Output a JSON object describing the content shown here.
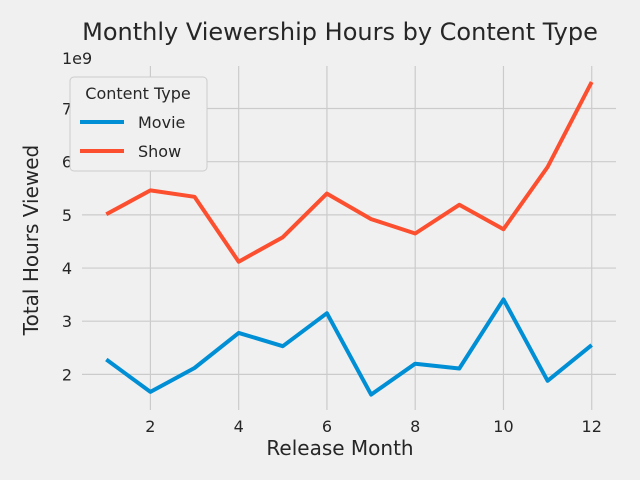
{
  "chart_data": {
    "type": "line",
    "title": "Monthly Viewership Hours by Content Type",
    "xlabel": "Release Month",
    "ylabel": "Total Hours Viewed",
    "y_offset_label": "1e9",
    "x": [
      1,
      2,
      3,
      4,
      5,
      6,
      7,
      8,
      9,
      10,
      11,
      12
    ],
    "xlim": [
      0.45,
      12.55
    ],
    "ylim": [
      1.33,
      7.8
    ],
    "y_unit_scale": 1000000000,
    "x_ticks": [
      2,
      4,
      6,
      8,
      10,
      12
    ],
    "y_ticks": [
      2,
      3,
      4,
      5,
      6,
      7
    ],
    "grid": true,
    "legend": {
      "title": "Content Type",
      "placement": "top-left"
    },
    "series": [
      {
        "name": "Movie",
        "color": "#008fd5",
        "values": [
          2.28,
          1.67,
          2.12,
          2.78,
          2.53,
          3.15,
          1.62,
          2.2,
          2.11,
          3.41,
          1.88,
          2.55
        ]
      },
      {
        "name": "Show",
        "color": "#fc4f30",
        "values": [
          5.01,
          5.46,
          5.34,
          4.12,
          4.58,
          5.4,
          4.92,
          4.65,
          5.19,
          4.73,
          5.9,
          7.5
        ]
      }
    ]
  }
}
